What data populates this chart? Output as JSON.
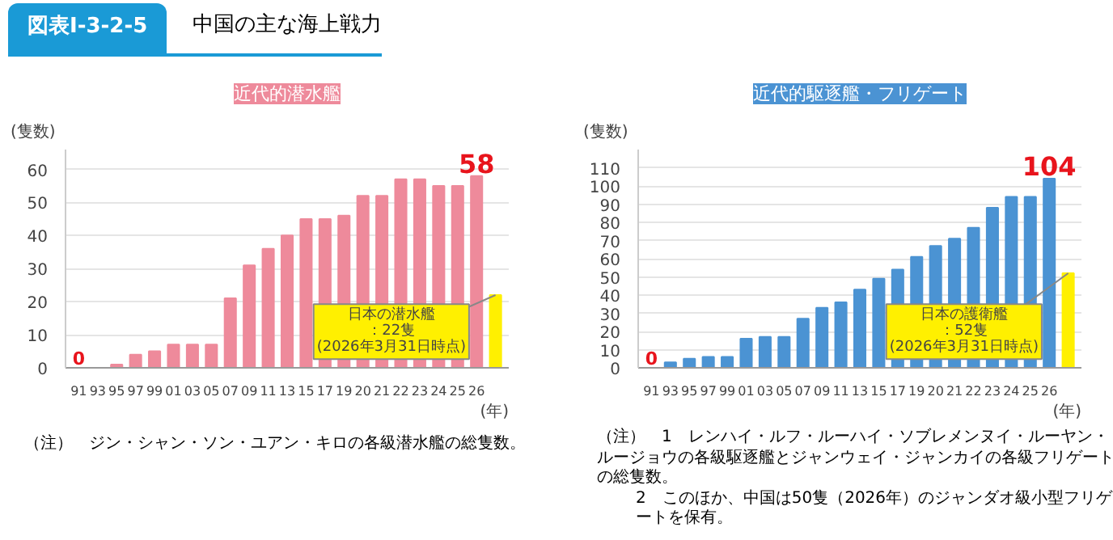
{
  "chart_data": [
    {
      "type": "other",
      "title": "中国の主な海上戦力",
      "subtitle": "図表Ⅰ-3-2-5"
    },
    {
      "type": "bar",
      "title": "近代的潜水艦",
      "ylabel": "(隻数)",
      "xlabel": "(年)",
      "categories": [
        "91",
        "93",
        "95",
        "97",
        "99",
        "01",
        "03",
        "05",
        "07",
        "09",
        "11",
        "13",
        "15",
        "17",
        "19",
        "20",
        "21",
        "22",
        "23",
        "24",
        "25",
        "26",
        null
      ],
      "values": [
        0,
        0,
        1,
        4,
        5,
        7,
        7,
        7,
        21,
        31,
        36,
        40,
        45,
        45,
        46,
        52,
        52,
        57,
        57,
        55,
        55,
        58,
        22
      ],
      "colors": [
        "#ee8a9b",
        "#ee8a9b",
        "#ee8a9b",
        "#ee8a9b",
        "#ee8a9b",
        "#ee8a9b",
        "#ee8a9b",
        "#ee8a9b",
        "#ee8a9b",
        "#ee8a9b",
        "#ee8a9b",
        "#ee8a9b",
        "#ee8a9b",
        "#ee8a9b",
        "#ee8a9b",
        "#ee8a9b",
        "#ee8a9b",
        "#ee8a9b",
        "#ee8a9b",
        "#ee8a9b",
        "#ee8a9b",
        "#ee8a9b",
        "#fff000"
      ],
      "value_labels": [
        "0",
        null,
        null,
        null,
        null,
        null,
        null,
        null,
        null,
        null,
        null,
        null,
        null,
        null,
        null,
        null,
        null,
        null,
        null,
        null,
        null,
        "58",
        null
      ],
      "ylim": [
        0,
        66
      ],
      "yticks": [
        0,
        10,
        20,
        30,
        40,
        50,
        60
      ],
      "grid": "y",
      "annotations": [
        {
          "text": "日本の潜水艦：22隻(2026年3月31日時点)",
          "y": 22
        },
        "（注）　ジン・シャン・ソン・ユアン・キロの各級潜水艦の総隻数。"
      ]
    },
    {
      "type": "bar",
      "title": "近代的駆逐艦・フリゲート",
      "ylabel": "(隻数)",
      "xlabel": "(年)",
      "categories": [
        "91",
        "93",
        "95",
        "97",
        "99",
        "01",
        "03",
        "05",
        "07",
        "09",
        "11",
        "13",
        "15",
        "17",
        "19",
        "20",
        "21",
        "22",
        "23",
        "24",
        "25",
        "26",
        null
      ],
      "values": [
        0,
        3,
        5,
        6,
        6,
        16,
        17,
        17,
        27,
        33,
        36,
        43,
        49,
        54,
        61,
        67,
        71,
        77,
        88,
        94,
        94,
        104,
        52
      ],
      "colors": [
        "#4b93d3",
        "#4b93d3",
        "#4b93d3",
        "#4b93d3",
        "#4b93d3",
        "#4b93d3",
        "#4b93d3",
        "#4b93d3",
        "#4b93d3",
        "#4b93d3",
        "#4b93d3",
        "#4b93d3",
        "#4b93d3",
        "#4b93d3",
        "#4b93d3",
        "#4b93d3",
        "#4b93d3",
        "#4b93d3",
        "#4b93d3",
        "#4b93d3",
        "#4b93d3",
        "#4b93d3",
        "#fff000"
      ],
      "value_labels": [
        "0",
        null,
        null,
        null,
        null,
        null,
        null,
        null,
        null,
        null,
        null,
        null,
        null,
        null,
        null,
        null,
        null,
        null,
        null,
        null,
        null,
        "104",
        null
      ],
      "ylim": [
        0,
        120
      ],
      "yticks": [
        0,
        10,
        20,
        30,
        40,
        50,
        60,
        70,
        80,
        90,
        100,
        110
      ],
      "grid": "y",
      "annotations": [
        {
          "text": "日本の護衛艦：52隻(2026年3月31日時点)",
          "y": 52
        },
        "（注）　1　レンハイ・ルフ・ルーハイ・ソブレメンヌイ・ルーヤン・ルージョウの各級駆逐艦とジャンウェイ・ジャンカイの各級フリゲートの総隻数。",
        "2　このほか、中国は50隻（2026年）のジャンダオ級小型フリゲートを保有。"
      ]
    }
  ]
}
